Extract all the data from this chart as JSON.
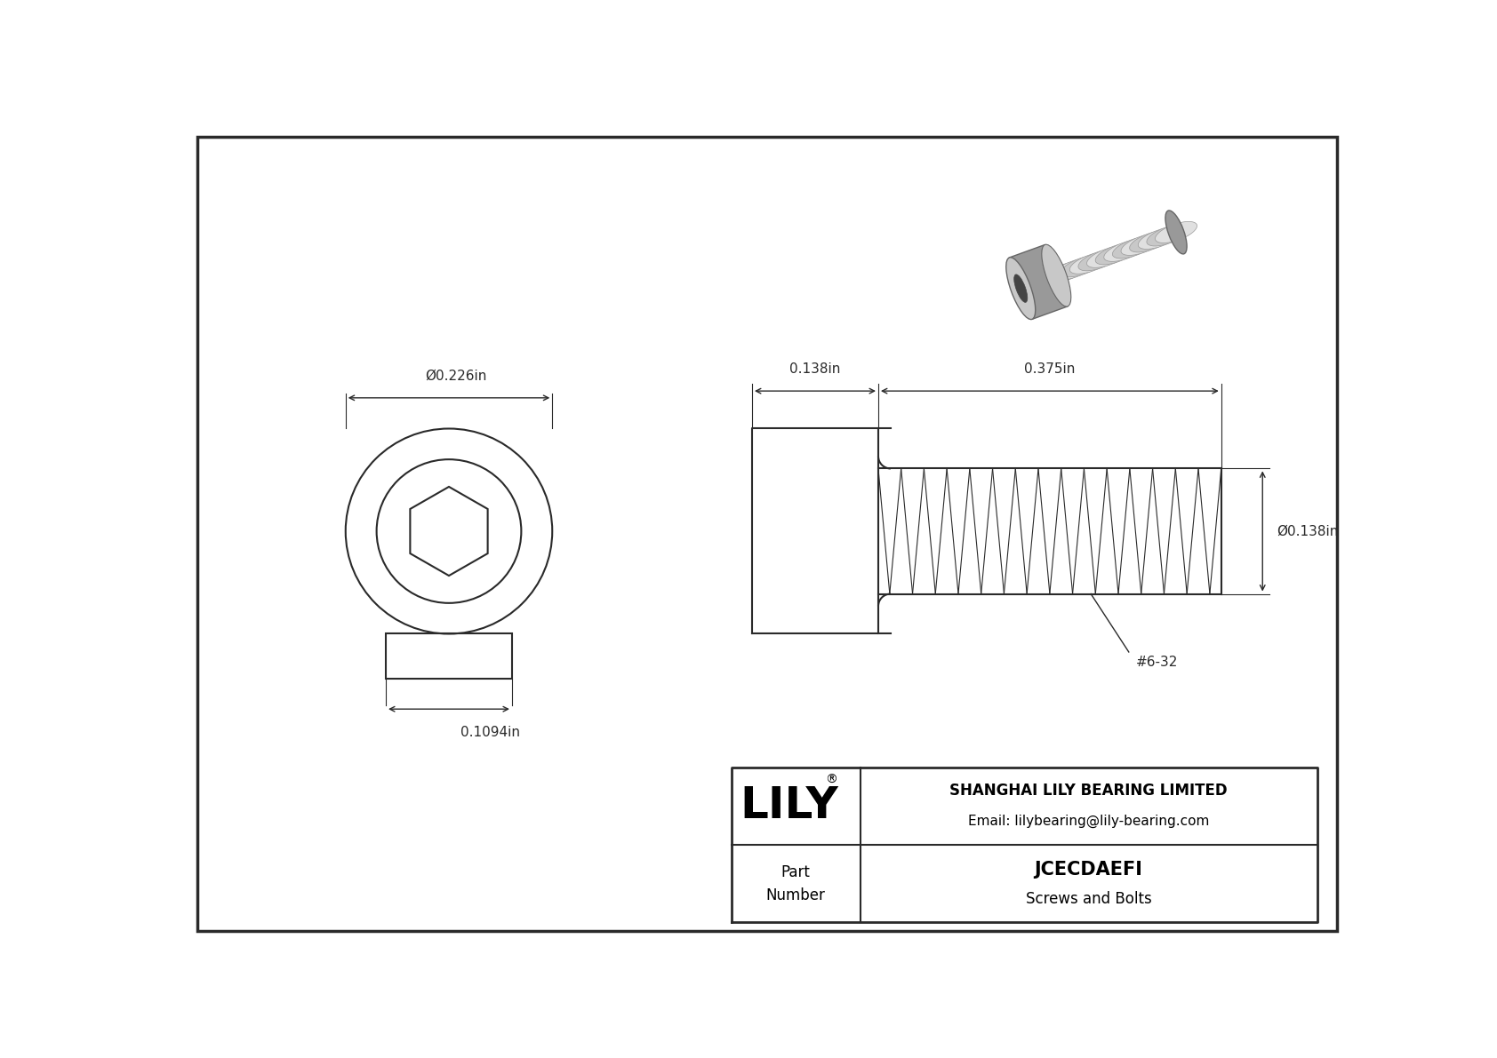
{
  "bg_color": "#ffffff",
  "border_color": "#2a2a2a",
  "line_color": "#2a2a2a",
  "dim_color": "#2a2a2a",
  "title_company": "SHANGHAI LILY BEARING LIMITED",
  "title_email": "Email: lilybearing@lily-bearing.com",
  "part_label": "Part\nNumber",
  "part_number": "JCECDAEFI",
  "part_category": "Screws and Bolts",
  "lily_logo": "LILY",
  "dim_head_diameter": "Ø0.226in",
  "dim_head_length": "0.1094in",
  "dim_shank_length": "0.138in",
  "dim_thread_length": "0.375in",
  "dim_thread_diameter": "Ø0.138in",
  "dim_thread_label": "#6-32"
}
